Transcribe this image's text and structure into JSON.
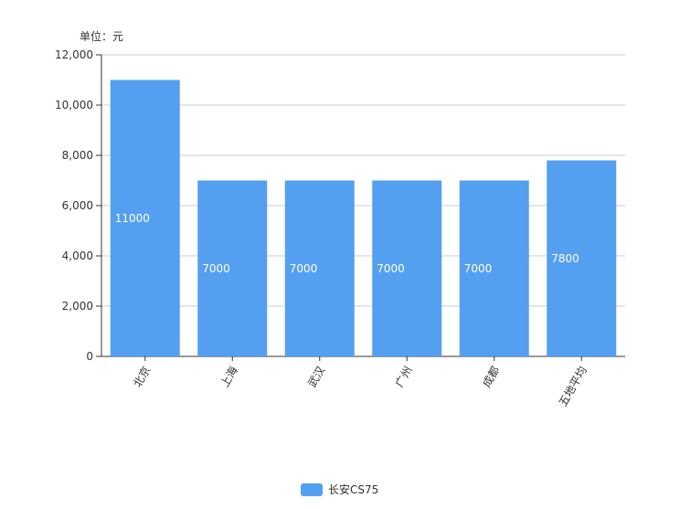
{
  "chart_data": {
    "type": "bar",
    "unit_label": "单位：元",
    "categories": [
      "北京",
      "上海",
      "武汉",
      "广州",
      "成都",
      "五地平均"
    ],
    "series": [
      {
        "name": "长安CS75",
        "values": [
          11000,
          7000,
          7000,
          7000,
          7000,
          7800
        ],
        "data_labels": [
          "11000",
          "7000",
          "7000",
          "7000",
          "7000",
          "7800"
        ],
        "color": "#559ff0"
      }
    ],
    "yticks": [
      "0",
      "2,000",
      "4,000",
      "6,000",
      "8,000",
      "10,000",
      "12,000"
    ],
    "ylim": [
      0,
      12000
    ],
    "grid": true,
    "legend_position": "bottom-center"
  }
}
